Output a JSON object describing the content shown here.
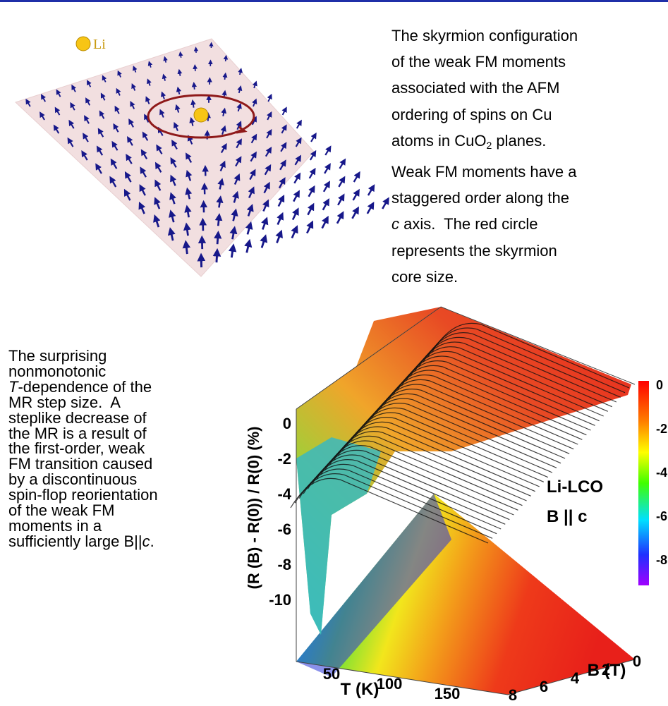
{
  "figure_top": {
    "legend_label": "Li"
  },
  "caption_top": {
    "lines": [
      [
        "The skyrmion configuration"
      ],
      [
        "of the weak FM moments"
      ],
      [
        "associated with the AFM"
      ],
      [
        "ordering of spins on Cu"
      ],
      [
        "atoms in CuO",
        "2",
        " planes."
      ],
      [
        "Weak FM moments have a"
      ],
      [
        "staggered order along the"
      ],
      [
        "c",
        " axis.  The red circle"
      ],
      [
        "represents the skyrmion"
      ],
      [
        "core size."
      ]
    ]
  },
  "caption_bottom": {
    "lines": [
      [
        "The surprising"
      ],
      [
        "nonmonotonic"
      ],
      [
        "T",
        "-dependence of the"
      ],
      [
        "MR step size.  A"
      ],
      [
        "steplike decrease of"
      ],
      [
        "the MR is a result of"
      ],
      [
        "the first-order, weak"
      ],
      [
        "FM transition caused"
      ],
      [
        "by a discontinuous"
      ],
      [
        "spin-flop reorientation"
      ],
      [
        "of the weak FM"
      ],
      [
        "moments in a"
      ],
      [
        "sufficiently large B||",
        "c",
        "."
      ]
    ]
  },
  "figure_bottom": {
    "z_label": "(R (B) - R(0)) / R(0) (%)",
    "z_ticks": [
      "0",
      "-2",
      "-4",
      "-6",
      "-8",
      "-10"
    ],
    "t_label": "T (K)",
    "t_ticks": [
      "50",
      "100",
      "150"
    ],
    "b_label": "B (T)",
    "b_ticks": [
      "0",
      "2",
      "4",
      "6",
      "8"
    ],
    "colorbar_ticks": [
      "0",
      "-2",
      "-4",
      "-6",
      "-8"
    ],
    "annotation": [
      "Li-LCO",
      "B || c"
    ]
  }
}
